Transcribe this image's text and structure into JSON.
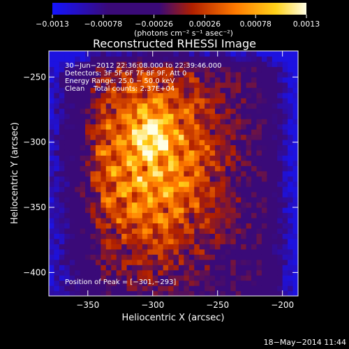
{
  "chart_data": {
    "type": "heatmap",
    "title": "Reconstructed RHESSI Image",
    "xlabel": "Heliocentric X (arcsec)",
    "ylabel": "Heliocentric Y (arcsec)",
    "xlim": [
      -380,
      -188
    ],
    "ylim": [
      -418,
      -230
    ],
    "x_ticks": [
      -350,
      -300,
      -250,
      -200
    ],
    "x_tick_labels": [
      "−350",
      "−300",
      "−250",
      "−200"
    ],
    "y_ticks": [
      -250,
      -300,
      -350,
      -400
    ],
    "y_tick_labels": [
      "−250",
      "−300",
      "−350",
      "−400"
    ],
    "colorbar": {
      "min": -0.0013,
      "max": 0.0013,
      "ticks": [
        -0.0013,
        -0.00078,
        -0.00026,
        0.00026,
        0.00078,
        0.0013
      ],
      "tick_labels": [
        "−0.0013",
        "−0.00078",
        "−0.00026",
        "0.00026",
        "0.00078",
        "0.0013"
      ],
      "unit_label": "(photons cm⁻² s⁻¹ asec⁻²)",
      "colors": [
        "#1414ff",
        "#3a0a78",
        "#3a0a78",
        "#b01f00",
        "#ff7a00",
        "#ffd21a",
        "#ffffe6"
      ]
    },
    "annotations": [
      "30−Jun−2012 22:36:08.000 to 22:39:46.000",
      "Detectors: 3F 5F 6F 7F 8F 9F, Att 0",
      "Energy Range: 25.0 − 50.0 keV",
      "Clean    Total counts: 2.37E+04"
    ],
    "peak_text": "Position of Peak = [−301,−293]",
    "peak": [
      -301,
      -293
    ]
  },
  "footer": {
    "date": "18−May−2014 11:44"
  }
}
